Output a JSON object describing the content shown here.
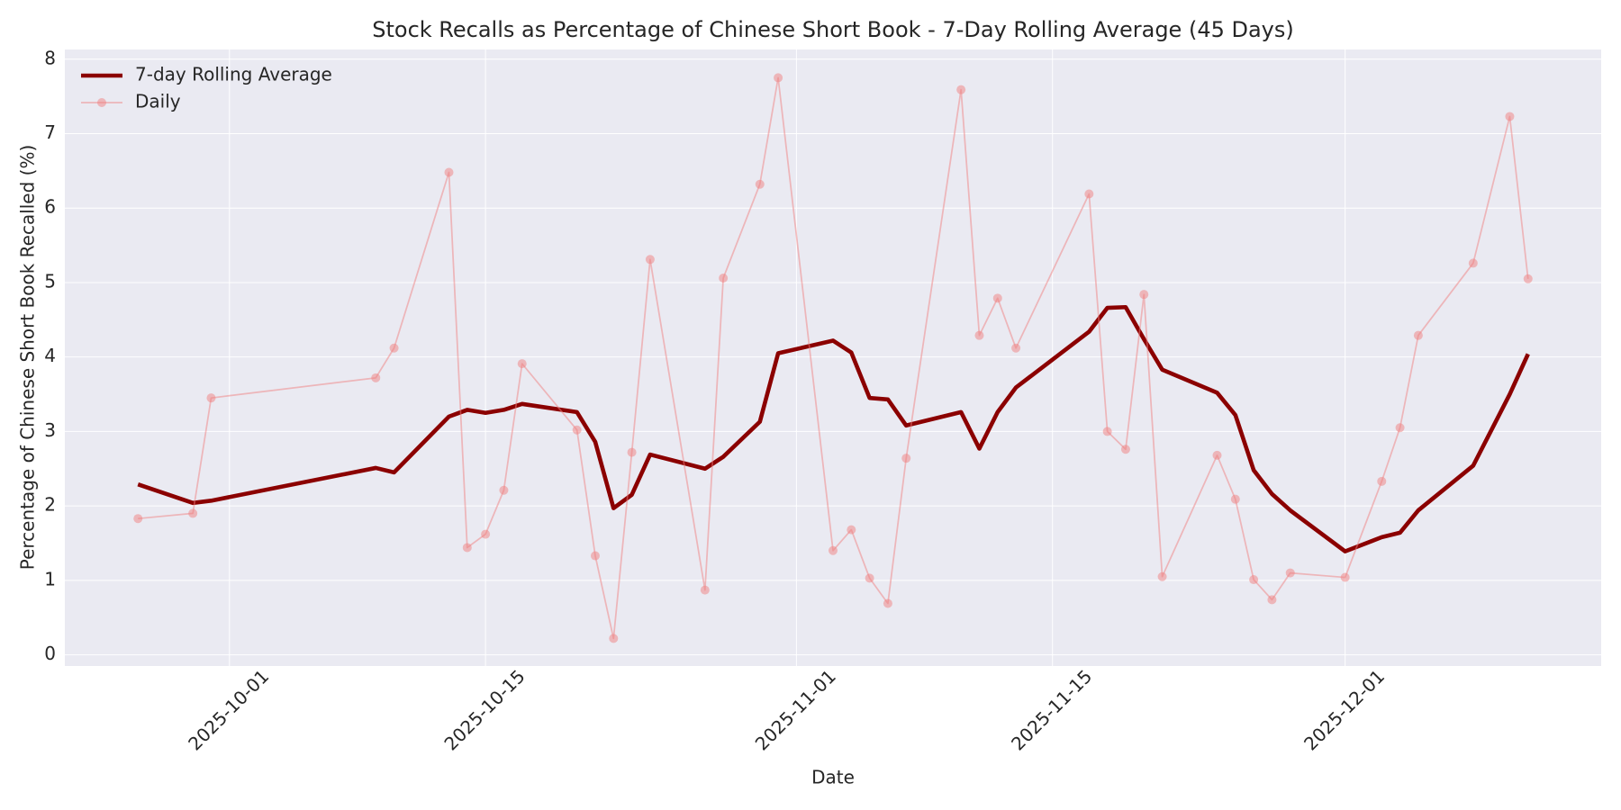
{
  "chart_data": {
    "type": "line",
    "title": "Stock Recalls as Percentage of Chinese Short Book - 7-Day Rolling Average (45 Days)",
    "x_label": "Date",
    "y_label": "Percentage of Chinese Short Book Recalled (%)",
    "x": [
      "2025-09-26",
      "2025-09-29",
      "2025-09-30",
      "2025-10-09",
      "2025-10-10",
      "2025-10-13",
      "2025-10-14",
      "2025-10-15",
      "2025-10-16",
      "2025-10-17",
      "2025-10-20",
      "2025-10-21",
      "2025-10-22",
      "2025-10-23",
      "2025-10-24",
      "2025-10-27",
      "2025-10-28",
      "2025-10-30",
      "2025-10-31",
      "2025-11-03",
      "2025-11-04",
      "2025-11-05",
      "2025-11-06",
      "2025-11-07",
      "2025-11-10",
      "2025-11-11",
      "2025-11-12",
      "2025-11-13",
      "2025-11-17",
      "2025-11-18",
      "2025-11-19",
      "2025-11-20",
      "2025-11-21",
      "2025-11-24",
      "2025-11-25",
      "2025-11-26",
      "2025-11-27",
      "2025-11-28",
      "2025-12-01",
      "2025-12-03",
      "2025-12-04",
      "2025-12-05",
      "2025-12-08",
      "2025-12-10",
      "2025-12-11"
    ],
    "series": [
      {
        "name": "7-day Rolling Average",
        "color": "#8b0000",
        "linewidth": 4,
        "marker": "none",
        "values": [
          2.29,
          2.04,
          2.07,
          2.51,
          2.45,
          3.2,
          3.29,
          3.25,
          3.29,
          3.37,
          3.26,
          2.86,
          1.97,
          2.15,
          2.69,
          2.5,
          2.66,
          3.13,
          4.05,
          4.22,
          4.06,
          3.45,
          3.43,
          3.08,
          3.26,
          2.77,
          3.26,
          3.59,
          4.34,
          4.66,
          4.67,
          4.24,
          3.83,
          3.52,
          3.22,
          2.48,
          2.16,
          1.94,
          1.39,
          1.58,
          1.64,
          1.94,
          2.54,
          3.5,
          4.04
        ]
      },
      {
        "name": "Daily",
        "color": "#f08080",
        "linewidth": 1.5,
        "marker": "o",
        "values": [
          1.83,
          1.9,
          3.45,
          3.72,
          4.12,
          6.48,
          1.44,
          1.62,
          2.21,
          3.91,
          3.02,
          1.33,
          0.22,
          2.72,
          5.31,
          0.87,
          5.06,
          6.32,
          7.75,
          1.4,
          1.68,
          1.03,
          0.69,
          2.64,
          7.59,
          4.29,
          4.79,
          4.12,
          6.19,
          3.0,
          2.76,
          4.84,
          1.05,
          2.68,
          2.09,
          1.01,
          0.74,
          1.1,
          1.04,
          2.33,
          3.05,
          4.29,
          5.26,
          7.23,
          5.05
        ]
      }
    ],
    "xlim": [
      "2025-09-22",
      "2025-12-15"
    ],
    "xticks": [
      "2025-10-01",
      "2025-10-15",
      "2025-11-01",
      "2025-11-15",
      "2025-12-01"
    ],
    "ylim": [
      -0.15,
      8.13
    ],
    "yticks": [
      0,
      1,
      2,
      3,
      4,
      5,
      6,
      7,
      8
    ],
    "grid": true,
    "legend": "upper-left"
  }
}
